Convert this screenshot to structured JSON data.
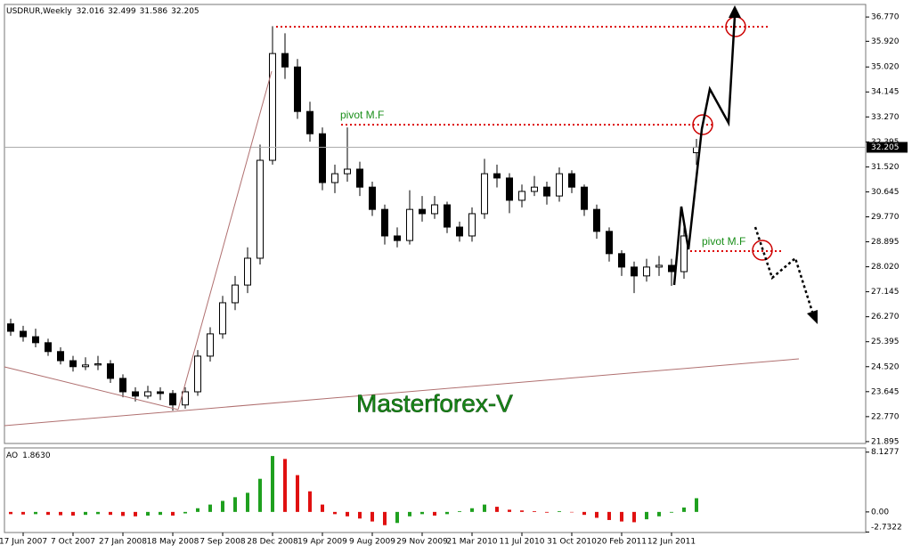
{
  "chart_data": {
    "type": "candlestick",
    "symbol": "USDRUR,Weekly",
    "categories": [
      null,
      "17 Jun 2007",
      null,
      null,
      null,
      "7 Oct 2007",
      null,
      null,
      null,
      "27 Jan 2008",
      null,
      null,
      null,
      "18 May 2008",
      null,
      null,
      null,
      "7 Sep 2008",
      null,
      null,
      null,
      "28 Dec 2008",
      null,
      null,
      null,
      "19 Apr 2009",
      null,
      null,
      null,
      "9 Aug 2009",
      null,
      null,
      null,
      "29 Nov 2009",
      null,
      null,
      null,
      "21 Mar 2010",
      null,
      null,
      null,
      "11 Jul 2010",
      null,
      null,
      null,
      "31 Oct 2010",
      null,
      null,
      null,
      "20 Feb 2011",
      null,
      null,
      null,
      "12 Jun 2011",
      null,
      null
    ],
    "open": [
      26.02,
      25.76,
      25.57,
      25.36,
      25.05,
      24.73,
      24.52,
      24.58,
      24.62,
      24.11,
      23.64,
      23.49,
      23.64,
      23.58,
      23.18,
      23.64,
      24.89,
      25.67,
      26.76,
      27.38,
      28.32,
      31.75,
      35.49,
      35.02,
      33.46,
      32.68,
      30.97,
      31.28,
      31.44,
      30.81,
      30.03,
      29.1,
      28.94,
      30.03,
      29.88,
      30.19,
      29.41,
      29.1,
      29.88,
      31.28,
      31.13,
      30.35,
      30.66,
      30.81,
      30.5,
      31.28,
      30.81,
      30.03,
      29.26,
      28.48,
      28.01,
      27.7,
      28.01,
      28.07,
      27.85,
      32.016
    ],
    "high": [
      26.2,
      25.95,
      25.85,
      25.5,
      25.2,
      24.9,
      24.85,
      24.9,
      24.75,
      24.25,
      23.8,
      23.85,
      23.8,
      23.7,
      23.8,
      25.1,
      25.9,
      27.0,
      27.7,
      28.7,
      32.3,
      36.45,
      36.2,
      35.3,
      33.8,
      32.9,
      31.6,
      32.9,
      31.7,
      31.0,
      30.2,
      29.4,
      30.7,
      30.5,
      30.5,
      30.3,
      29.6,
      30.1,
      31.8,
      31.6,
      31.3,
      30.9,
      31.2,
      31.0,
      31.5,
      31.4,
      30.9,
      30.2,
      29.4,
      28.6,
      28.2,
      28.3,
      28.4,
      28.3,
      29.4,
      32.499
    ],
    "low": [
      25.6,
      25.4,
      25.2,
      24.9,
      24.6,
      24.35,
      24.4,
      24.4,
      23.95,
      23.45,
      23.3,
      23.4,
      23.35,
      22.98,
      23.05,
      23.5,
      24.7,
      25.5,
      26.5,
      27.1,
      28.1,
      31.6,
      34.6,
      33.2,
      32.4,
      30.7,
      30.6,
      31.0,
      30.5,
      29.8,
      28.8,
      28.7,
      28.8,
      29.6,
      29.7,
      29.2,
      28.9,
      28.9,
      29.7,
      30.8,
      29.9,
      30.1,
      30.5,
      30.2,
      30.3,
      30.6,
      29.8,
      29.0,
      28.2,
      27.7,
      27.1,
      27.5,
      27.7,
      27.35,
      27.6,
      31.586
    ],
    "close": [
      25.76,
      25.57,
      25.36,
      25.05,
      24.73,
      24.52,
      24.58,
      24.62,
      24.11,
      23.64,
      23.49,
      23.64,
      23.58,
      23.18,
      23.64,
      24.89,
      25.67,
      26.76,
      27.38,
      28.32,
      31.75,
      35.49,
      35.02,
      33.46,
      32.68,
      30.97,
      31.28,
      31.44,
      30.81,
      30.03,
      29.1,
      28.94,
      30.03,
      29.88,
      30.19,
      29.41,
      29.1,
      29.88,
      31.28,
      31.13,
      30.35,
      30.66,
      30.81,
      30.5,
      31.28,
      30.81,
      30.03,
      29.26,
      28.48,
      28.01,
      27.7,
      28.01,
      28.07,
      27.85,
      29.1,
      32.205
    ],
    "up_color": "#ffffff",
    "down_color": "#000000",
    "ylim": [
      21.83,
      37.21
    ],
    "yticks": [
      {
        "value": 36.77,
        "label": "36.770"
      },
      {
        "value": 35.92,
        "label": "35.920"
      },
      {
        "value": 35.02,
        "label": "35.020"
      },
      34.145,
      {
        "value": 33.27,
        "label": "33.270"
      },
      32.395,
      {
        "value": 31.52,
        "label": "31.520"
      },
      30.645,
      {
        "value": 29.77,
        "label": "29.770"
      },
      28.895,
      {
        "value": 28.02,
        "label": "28.020"
      },
      27.145,
      {
        "value": 26.27,
        "label": "26.270"
      },
      25.395,
      {
        "value": 24.52,
        "label": "24.520"
      },
      23.645,
      {
        "value": 22.77,
        "label": "22.770"
      },
      21.895
    ],
    "indicator": {
      "type": "bar",
      "name": "AO",
      "value_label": "1.8630",
      "values": [
        -0.3,
        -0.35,
        -0.3,
        -0.4,
        -0.45,
        -0.5,
        -0.4,
        -0.3,
        -0.4,
        -0.55,
        -0.6,
        -0.5,
        -0.4,
        -0.5,
        -0.2,
        0.5,
        1.0,
        1.5,
        2.0,
        2.6,
        4.5,
        7.6,
        7.2,
        5.0,
        2.8,
        1.0,
        -0.3,
        -0.6,
        -0.9,
        -1.3,
        -1.8,
        -1.5,
        -0.6,
        -0.3,
        -0.5,
        -0.3,
        0.1,
        0.5,
        1.0,
        0.7,
        0.3,
        0.2,
        0.1,
        -0.1,
        0.1,
        0.0,
        -0.4,
        -0.8,
        -1.1,
        -1.3,
        -1.4,
        -1.0,
        -0.6,
        -0.1,
        0.6,
        1.863
      ],
      "up_color": "#1fa01f",
      "down_color": "#e01010",
      "ylim": [
        -2.8,
        8.7
      ],
      "yticks": [
        8.1277,
        {
          "value": 0,
          "label": "0.00"
        },
        -2.7322
      ]
    },
    "annotations": {
      "pivot_labels": [
        "pivot M.F",
        "pivot M.F"
      ],
      "watermark": "Masterforex-V"
    }
  }
}
